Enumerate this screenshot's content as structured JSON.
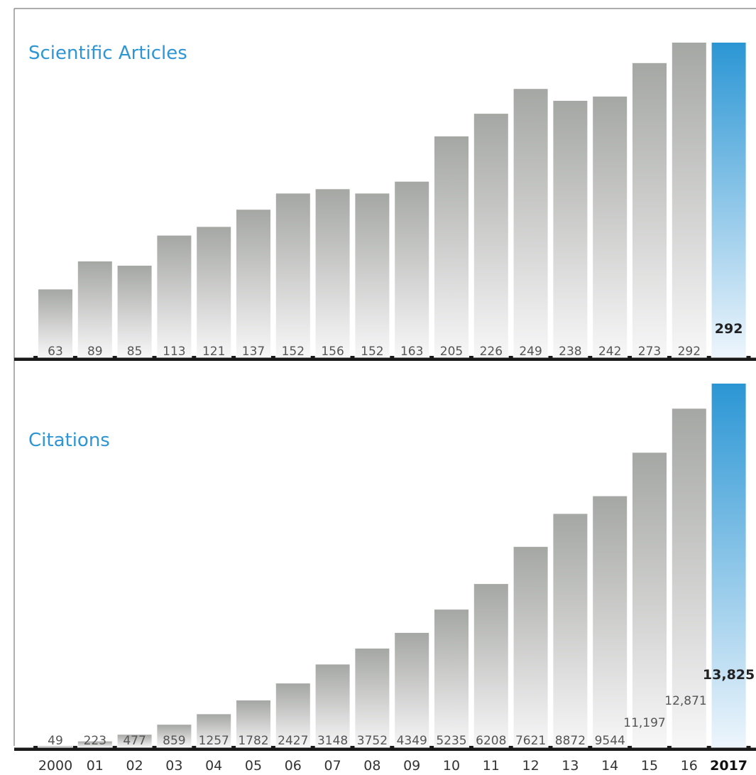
{
  "colors": {
    "title": "#2f95d3",
    "bar_top": "#a5a7a4",
    "bar_bottom": "#f7f7f7",
    "highlight_top": "#2b96d4",
    "highlight_bottom": "#edf5fc",
    "baseline": "#1a1a1a"
  },
  "chart_data": [
    {
      "type": "bar",
      "title": "Scientific Articles",
      "categories": [
        "2000",
        "01",
        "02",
        "03",
        "04",
        "05",
        "06",
        "07",
        "08",
        "09",
        "10",
        "11",
        "12",
        "13",
        "14",
        "15",
        "16",
        "2017"
      ],
      "values": [
        63,
        89,
        85,
        113,
        121,
        137,
        152,
        156,
        152,
        163,
        205,
        226,
        249,
        238,
        242,
        273,
        292,
        292
      ],
      "value_labels": [
        "63",
        "89",
        "85",
        "113",
        "121",
        "137",
        "152",
        "156",
        "152",
        "163",
        "205",
        "226",
        "249",
        "238",
        "242",
        "273",
        "292",
        "292"
      ],
      "highlight_index": 17,
      "ylim": [
        0,
        292
      ]
    },
    {
      "type": "bar",
      "title": "Citations",
      "categories": [
        "2000",
        "01",
        "02",
        "03",
        "04",
        "05",
        "06",
        "07",
        "08",
        "09",
        "10",
        "11",
        "12",
        "13",
        "14",
        "15",
        "16",
        "2017"
      ],
      "values": [
        49,
        223,
        477,
        859,
        1257,
        1782,
        2427,
        3148,
        3752,
        4349,
        5235,
        6208,
        7621,
        8872,
        9544,
        11197,
        12871,
        13825
      ],
      "value_labels": [
        "49",
        "223",
        "477",
        "859",
        "1257",
        "1782",
        "2427",
        "3148",
        "3752",
        "4349",
        "5235",
        "6208",
        "7621",
        "8872",
        "9544",
        "11,197",
        "12,871",
        "13,825"
      ],
      "highlight_index": 17,
      "ylim": [
        0,
        13825
      ]
    }
  ]
}
